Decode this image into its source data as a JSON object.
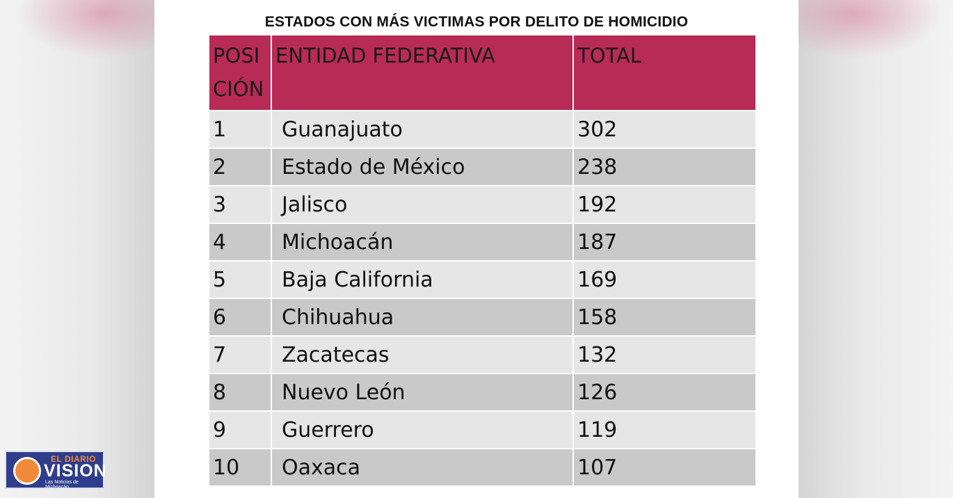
{
  "title": "ESTADOS CON MÁS VICTIMAS POR DELITO DE HOMICIDIO",
  "table": {
    "headers": {
      "position": "POSI CIÓN",
      "entity": "ENTIDAD FEDERATIVA",
      "total": "TOTAL"
    },
    "rows": [
      {
        "pos": "1",
        "entity": "Guanajuato",
        "total": "302"
      },
      {
        "pos": "2",
        "entity": "Estado de México",
        "total": "238"
      },
      {
        "pos": "3",
        "entity": "Jalisco",
        "total": "192"
      },
      {
        "pos": "4",
        "entity": "Michoacán",
        "total": "187"
      },
      {
        "pos": "5",
        "entity": "Baja California",
        "total": "169"
      },
      {
        "pos": "6",
        "entity": "Chihuahua",
        "total": "158"
      },
      {
        "pos": "7",
        "entity": "Zacatecas",
        "total": "132"
      },
      {
        "pos": "8",
        "entity": "Nuevo León",
        "total": "126"
      },
      {
        "pos": "9",
        "entity": "Guerrero",
        "total": "119"
      },
      {
        "pos": "10",
        "entity": "Oaxaca",
        "total": "107"
      }
    ]
  },
  "logo": {
    "line1": "EL DIARIO",
    "line2": "VISION",
    "tagline": "Las Noticias de Michoacán"
  },
  "colors": {
    "header_bg": "#b82b57",
    "row_light": "#e6e6e6",
    "row_dark": "#c9c9c9",
    "logo_bg": "#2f3d8c",
    "logo_accent": "#f08a3a"
  }
}
